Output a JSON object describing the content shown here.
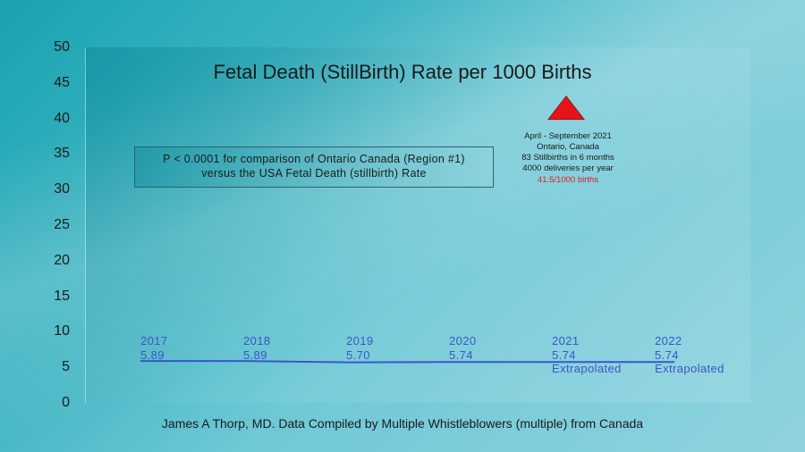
{
  "chart_data": {
    "type": "line",
    "title": "Fetal Death (StillBirth) Rate per 1000 Births",
    "ylim": [
      0,
      50
    ],
    "yticks": [
      "0",
      "5",
      "10",
      "15",
      "20",
      "25",
      "30",
      "35",
      "40",
      "45",
      "50"
    ],
    "categories": [
      "2017",
      "2018",
      "2019",
      "2020",
      "2021",
      "2022"
    ],
    "value_labels": [
      "5.89",
      "5.89",
      "5.70",
      "5.74",
      "5.74",
      "5.74"
    ],
    "values": [
      5.89,
      5.89,
      5.7,
      5.74,
      5.74,
      5.74
    ],
    "notes": [
      "",
      "",
      "",
      "",
      "Extrapolated",
      "Extrapolated"
    ],
    "line_color": "#3a56c8",
    "highlight_point": {
      "y": 41.5,
      "color": "#e8131a",
      "marker": "triangle"
    },
    "annotation_lines": [
      "April - September 2021",
      "Ontario, Canada",
      "83 Stillbirths in 6 months",
      "4000 deliveries per year"
    ],
    "annotation_highlight": "41.5/1000 births",
    "pvalue_text": [
      "P < 0.0001 for comparison of Ontario Canada (Region #1)",
      "versus the USA Fetal Death (stillbirth) Rate"
    ],
    "footer": "James A Thorp, MD. Data Compiled by Multiple Whistleblowers (multiple) from Canada"
  }
}
